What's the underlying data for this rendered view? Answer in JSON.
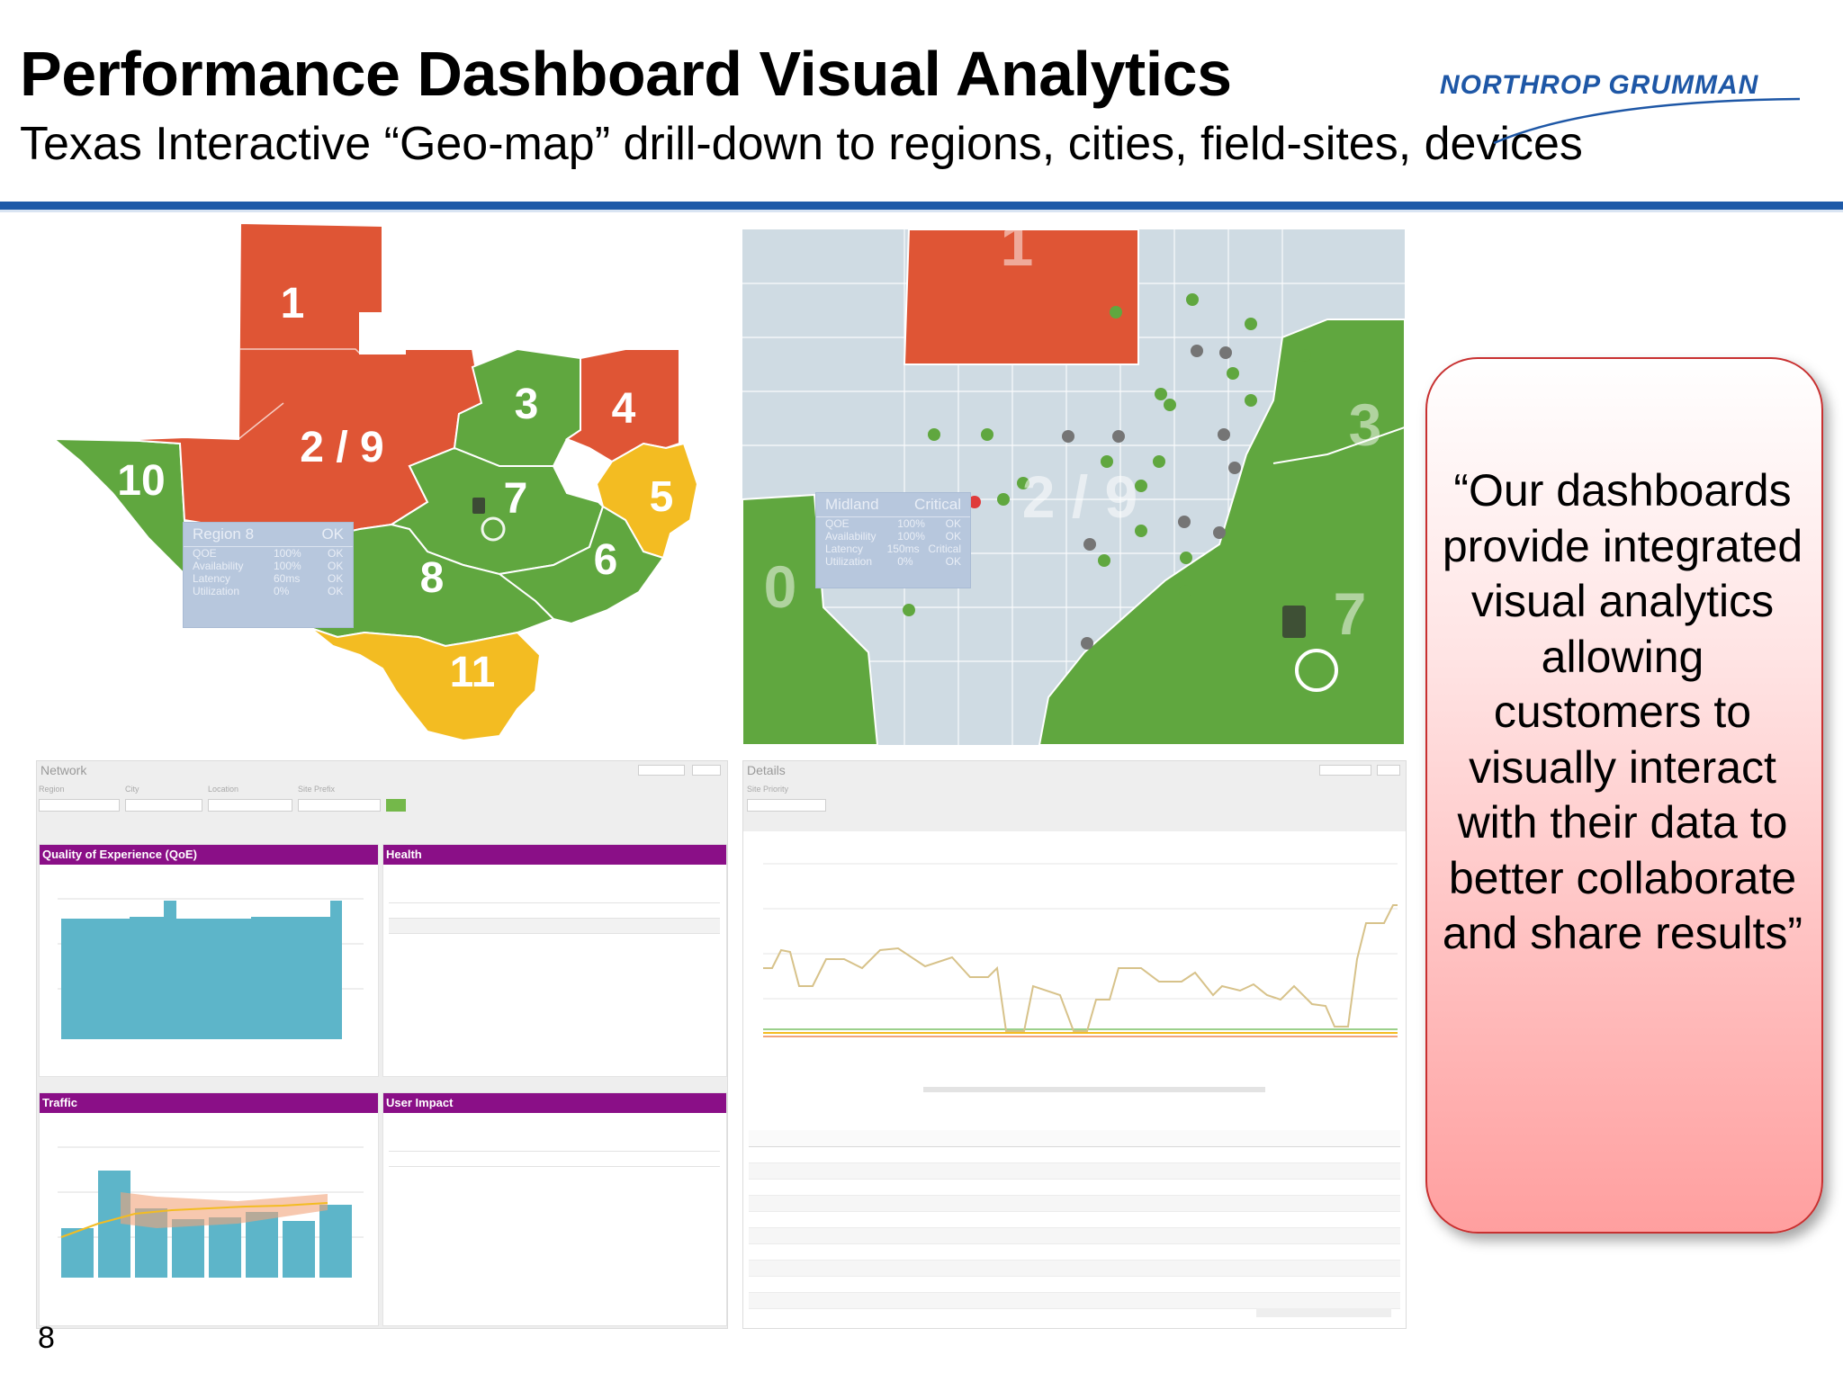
{
  "slide": {
    "title": "Performance Dashboard Visual Analytics",
    "subtitle": "Texas Interactive “Geo-map” drill-down to regions, cities, field-sites, devices",
    "logo_text": "NORTHROP GRUMMAN",
    "page_number": "8"
  },
  "quote": {
    "text": "“Our dashboards provide integrated visual analytics allowing customers to visually interact with their data to better collaborate and share results”"
  },
  "colors": {
    "red": "#df5535",
    "green": "#60a73f",
    "yellow": "#f3bc22",
    "grey_region": "#cfdbe3",
    "rule_blue": "#1e5aa8",
    "purple_header": "#8a0f87",
    "teal_bar": "#5db5c9"
  },
  "map_left": {
    "region_labels": [
      "1",
      "2 / 9",
      "3",
      "4",
      "5",
      "6",
      "7",
      "8",
      "10",
      "11"
    ],
    "infobox": {
      "title": "Region 8",
      "status": "OK",
      "rows": [
        {
          "metric": "QOE",
          "value": "100%",
          "status": "OK"
        },
        {
          "metric": "Availability",
          "value": "100%",
          "status": "OK"
        },
        {
          "metric": "Latency",
          "value": "60ms",
          "status": "OK"
        },
        {
          "metric": "Utilization",
          "value": "0%",
          "status": "OK"
        }
      ]
    }
  },
  "map_right": {
    "region_labels": [
      "1",
      "2 / 9",
      "3",
      "0",
      "7"
    ],
    "infobox": {
      "title": "Midland",
      "status": "Critical",
      "rows": [
        {
          "metric": "QOE",
          "value": "100%",
          "status": "OK"
        },
        {
          "metric": "Availability",
          "value": "100%",
          "status": "OK"
        },
        {
          "metric": "Latency",
          "value": "150ms",
          "status": "Critical"
        },
        {
          "metric": "Utilization",
          "value": "0%",
          "status": "OK"
        }
      ]
    }
  },
  "network_panel": {
    "title": "Network",
    "filter_labels": [
      "Region",
      "City",
      "Location",
      "Site Prefix"
    ],
    "cards": {
      "qoe": "Quality of Experience (QoE)",
      "health": "Health",
      "traffic": "Traffic",
      "user_impact": "User Impact"
    }
  },
  "details_panel": {
    "title": "Details",
    "filter_label": "Site Priority",
    "filter_value": "Site Priority"
  }
}
